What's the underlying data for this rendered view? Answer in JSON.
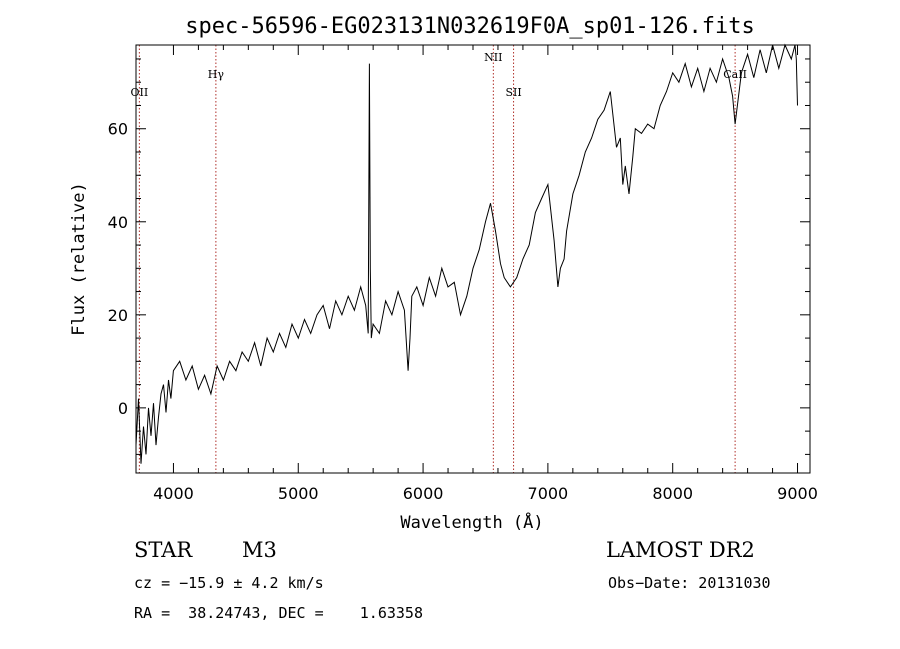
{
  "chart_data": {
    "type": "line",
    "title": "spec-56596-EG023131N032619F0A_sp01-126.fits",
    "xlabel": "Wavelength (Å)",
    "ylabel": "Flux (relative)",
    "xlim": [
      3700,
      9100
    ],
    "ylim": [
      -14,
      78
    ],
    "x_ticks": [
      4000,
      5000,
      6000,
      7000,
      8000,
      9000
    ],
    "y_ticks": [
      0,
      20,
      40,
      60
    ],
    "grid": false,
    "line_markers": [
      {
        "label": "OII",
        "x": 3727
      },
      {
        "label": "Hγ",
        "x": 4340
      },
      {
        "label": "NII",
        "x": 6563
      },
      {
        "label": "SII",
        "x": 6725
      },
      {
        "label": "CaII",
        "x": 8500
      }
    ],
    "series": [
      {
        "x": [
          3700,
          3720,
          3740,
          3760,
          3780,
          3800,
          3820,
          3840,
          3860,
          3880,
          3900,
          3920,
          3940,
          3960,
          3980,
          4000,
          4050,
          4100,
          4150,
          4200,
          4250,
          4300,
          4350,
          4400,
          4450,
          4500,
          4550,
          4600,
          4650,
          4700,
          4750,
          4800,
          4850,
          4900,
          4950,
          5000,
          5050,
          5100,
          5150,
          5200,
          5250,
          5300,
          5350,
          5400,
          5450,
          5500,
          5540,
          5560,
          5570,
          5577,
          5585,
          5600,
          5650,
          5700,
          5750,
          5800,
          5850,
          5880,
          5895,
          5910,
          5950,
          6000,
          6050,
          6100,
          6150,
          6200,
          6250,
          6300,
          6350,
          6400,
          6450,
          6500,
          6540,
          6560,
          6580,
          6620,
          6650,
          6700,
          6750,
          6800,
          6850,
          6900,
          6950,
          7000,
          7050,
          7080,
          7100,
          7130,
          7150,
          7200,
          7250,
          7300,
          7350,
          7400,
          7450,
          7500,
          7550,
          7580,
          7600,
          7620,
          7650,
          7680,
          7700,
          7750,
          7800,
          7850,
          7900,
          7950,
          8000,
          8050,
          8100,
          8150,
          8200,
          8250,
          8300,
          8350,
          8400,
          8450,
          8480,
          8500,
          8550,
          8600,
          8650,
          8700,
          8750,
          8800,
          8850,
          8900,
          8950,
          8980,
          8990,
          9000
        ],
        "y": [
          -8,
          2,
          -12,
          -4,
          -10,
          0,
          -6,
          1,
          -8,
          -2,
          3,
          5,
          -1,
          6,
          2,
          8,
          10,
          6,
          9,
          4,
          7,
          3,
          9,
          6,
          10,
          8,
          12,
          10,
          14,
          9,
          15,
          12,
          16,
          13,
          18,
          15,
          19,
          16,
          20,
          22,
          17,
          23,
          20,
          24,
          21,
          26,
          22,
          16,
          74,
          30,
          15,
          18,
          16,
          23,
          20,
          25,
          21,
          8,
          15,
          24,
          26,
          22,
          28,
          24,
          30,
          26,
          27,
          20,
          24,
          30,
          34,
          40,
          44,
          41,
          38,
          31,
          28,
          26,
          28,
          32,
          35,
          42,
          45,
          48,
          36,
          26,
          30,
          32,
          38,
          46,
          50,
          55,
          58,
          62,
          64,
          68,
          56,
          58,
          48,
          52,
          46,
          54,
          60,
          59,
          61,
          60,
          65,
          68,
          72,
          70,
          74,
          69,
          73,
          68,
          73,
          70,
          75,
          71,
          67,
          61,
          72,
          76,
          71,
          77,
          72,
          78,
          73,
          78,
          75,
          78,
          75,
          65
        ],
        "color": "#000000"
      }
    ]
  },
  "info": {
    "object_class": "STAR",
    "subclass": "M3",
    "survey": "LAMOST DR2",
    "cz": "cz = −15.9 ± 4.2 km/s",
    "obs_date": "Obs−Date: 20131030",
    "coords": "RA =  38.24743, DEC =    1.63358"
  },
  "colors": {
    "marker_line": "#b0302a",
    "axis": "#000000",
    "spectrum": "#000000"
  }
}
